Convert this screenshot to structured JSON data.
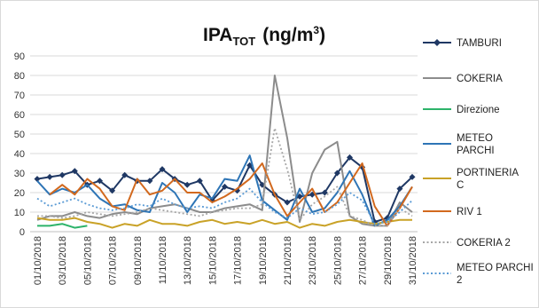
{
  "chart_data": {
    "type": "line",
    "title": "IPA",
    "title_sub": "TOT",
    "title_unit": "(ng/m",
    "title_sup": "3",
    "title_close": ")",
    "ylim": [
      0,
      90
    ],
    "yticks": [
      0,
      10,
      20,
      30,
      40,
      50,
      60,
      70,
      80,
      90
    ],
    "grid": true,
    "legend_position": "right",
    "x_labels": [
      "01/10/2018",
      "03/10/2018",
      "05/10/2018",
      "07/10/2018",
      "09/10/2018",
      "11/10/2018",
      "13/10/2018",
      "15/10/2018",
      "17/10/2018",
      "19/10/2018",
      "21/10/2018",
      "23/10/2018",
      "25/10/2018",
      "27/10/2018",
      "29/10/2018",
      "31/10/2018"
    ],
    "series": [
      {
        "name": "TAMBURI",
        "color": "#1f3864",
        "style": "solid-marker",
        "values": [
          27,
          28,
          29,
          31,
          24,
          26,
          21,
          29,
          26,
          26,
          32,
          27,
          24,
          26,
          16,
          23,
          21,
          34,
          24,
          19,
          15,
          18,
          19,
          20,
          30,
          38,
          33,
          5,
          7,
          22,
          28
        ]
      },
      {
        "name": "COKERIA",
        "color": "#8c8c8c",
        "style": "solid",
        "values": [
          6,
          8,
          8,
          10,
          8,
          7,
          9,
          10,
          9,
          12,
          13,
          14,
          12,
          10,
          10,
          12,
          13,
          14,
          11,
          80,
          48,
          5,
          30,
          42,
          46,
          8,
          4,
          3,
          3,
          15,
          10
        ]
      },
      {
        "name": "Direzione",
        "color": "#2db36a",
        "style": "solid",
        "values": [
          3,
          3,
          4,
          2,
          3,
          null,
          null,
          null,
          null,
          null,
          null,
          null,
          null,
          null,
          null,
          null,
          null,
          null,
          null,
          null,
          null,
          null,
          null,
          null,
          null,
          null,
          null,
          null,
          null,
          null,
          null
        ]
      },
      {
        "name": "METEO PARCHI",
        "color": "#2e75b6",
        "style": "solid",
        "values": [
          26,
          19,
          22,
          20,
          24,
          17,
          13,
          14,
          11,
          10,
          25,
          20,
          10,
          19,
          17,
          27,
          26,
          39,
          16,
          11,
          6,
          22,
          10,
          12,
          20,
          31,
          19,
          3,
          6,
          13,
          23
        ]
      },
      {
        "name": "PORTINERIA C",
        "color": "#c9a227",
        "style": "solid",
        "values": [
          7,
          6,
          6,
          7,
          5,
          4,
          2,
          4,
          3,
          6,
          4,
          4,
          3,
          5,
          6,
          4,
          5,
          4,
          6,
          4,
          5,
          2,
          4,
          3,
          5,
          6,
          5,
          4,
          5,
          6,
          6
        ]
      },
      {
        "name": "RIV 1",
        "color": "#d2691e",
        "style": "solid",
        "values": [
          null,
          19,
          24,
          19,
          27,
          22,
          13,
          11,
          27,
          19,
          21,
          27,
          20,
          20,
          15,
          18,
          22,
          27,
          35,
          19,
          8,
          15,
          22,
          10,
          15,
          25,
          35,
          13,
          3,
          12,
          23
        ]
      },
      {
        "name": "COKERIA 2",
        "color": "#a6a6a6",
        "style": "dotted",
        "values": [
          8,
          8,
          7,
          8,
          10,
          9,
          8,
          9,
          10,
          12,
          11,
          10,
          9,
          8,
          10,
          11,
          12,
          12,
          14,
          53,
          32,
          6,
          14,
          18,
          23,
          8,
          6,
          3,
          3,
          12,
          8
        ]
      },
      {
        "name": "METEO PARCHI 2",
        "color": "#5b9bd5",
        "style": "dotted",
        "values": [
          17,
          13,
          15,
          17,
          14,
          12,
          11,
          12,
          14,
          13,
          17,
          14,
          12,
          13,
          12,
          15,
          17,
          22,
          15,
          10,
          7,
          12,
          9,
          10,
          14,
          20,
          16,
          4,
          5,
          10,
          16
        ]
      }
    ]
  }
}
